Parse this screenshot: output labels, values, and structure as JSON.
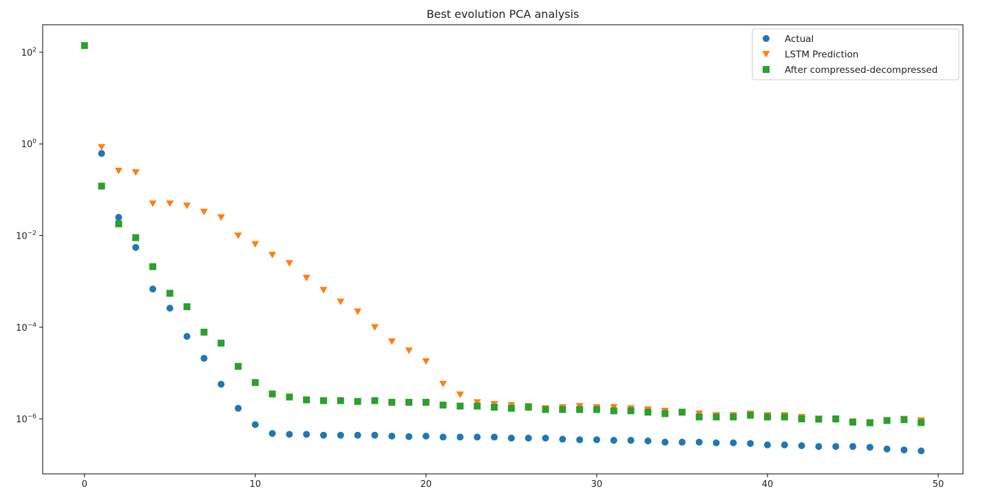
{
  "chart_data": {
    "type": "scatter",
    "title": "Best evolution PCA analysis",
    "xlabel": "",
    "ylabel": "",
    "y_scale": "log",
    "xlim": [
      -2.45,
      51.45
    ],
    "ylim_exponent": [
      -7.2,
      2.6
    ],
    "x_ticks": [
      0,
      10,
      20,
      30,
      40,
      50
    ],
    "y_ticks_exponent": [
      -6,
      -4,
      -2,
      0,
      2
    ],
    "y_tick_base": "10",
    "grid": false,
    "legend": {
      "position": "top-right",
      "entries": [
        "Actual",
        "LSTM Prediction",
        "After compressed-decompressed"
      ]
    },
    "series": [
      {
        "name": "Actual",
        "marker": "circle",
        "color": "#1f77b4",
        "x": [
          1,
          2,
          3,
          4,
          5,
          6,
          7,
          8,
          9,
          10,
          11,
          12,
          13,
          14,
          15,
          16,
          17,
          18,
          19,
          20,
          21,
          22,
          23,
          24,
          25,
          26,
          27,
          28,
          29,
          30,
          31,
          32,
          33,
          34,
          35,
          36,
          37,
          38,
          39,
          40,
          41,
          42,
          43,
          44,
          45,
          46,
          47,
          48,
          49
        ],
        "y": [
          0.62,
          0.025,
          0.0055,
          0.00068,
          0.00026,
          6.3e-05,
          2.1e-05,
          5.7e-06,
          1.7e-06,
          7.5e-07,
          4.8e-07,
          4.6e-07,
          4.6e-07,
          4.4e-07,
          4.4e-07,
          4.4e-07,
          4.4e-07,
          4.2e-07,
          4.1e-07,
          4.2e-07,
          4e-07,
          4e-07,
          4e-07,
          4e-07,
          3.8e-07,
          3.8e-07,
          3.8e-07,
          3.6e-07,
          3.5e-07,
          3.5e-07,
          3.4e-07,
          3.4e-07,
          3.3e-07,
          3.1e-07,
          3.1e-07,
          3.1e-07,
          3e-07,
          3e-07,
          2.9e-07,
          2.7e-07,
          2.7e-07,
          2.6e-07,
          2.5e-07,
          2.5e-07,
          2.5e-07,
          2.4e-07,
          2.2e-07,
          2.1e-07,
          2e-07
        ]
      },
      {
        "name": "LSTM Prediction",
        "marker": "triangle-down",
        "color": "#ff7f0e",
        "x": [
          1,
          2,
          3,
          4,
          5,
          6,
          7,
          8,
          9,
          10,
          11,
          12,
          13,
          14,
          15,
          16,
          17,
          18,
          19,
          20,
          21,
          22,
          23,
          24,
          25,
          26,
          27,
          28,
          29,
          30,
          31,
          32,
          33,
          34,
          35,
          36,
          37,
          38,
          39,
          40,
          41,
          42,
          43,
          44,
          45,
          46,
          47,
          48,
          49
        ],
        "y": [
          0.85,
          0.26,
          0.24,
          0.05,
          0.05,
          0.045,
          0.033,
          0.025,
          0.01,
          0.0065,
          0.0038,
          0.0025,
          0.0012,
          0.00065,
          0.00036,
          0.00022,
          0.0001,
          4.9e-05,
          3.1e-05,
          1.8e-05,
          5.8e-06,
          3.4e-06,
          2.3e-06,
          2.1e-06,
          2e-06,
          1.9e-06,
          1.7e-06,
          1.8e-06,
          1.9e-06,
          1.8e-06,
          1.8e-06,
          1.7e-06,
          1.6e-06,
          1.5e-06,
          1.4e-06,
          1.3e-06,
          1.2e-06,
          1.2e-06,
          1.3e-06,
          1.2e-06,
          1.2e-06,
          1.1e-06,
          1e-06,
          9.5e-07,
          8.8e-07,
          8.5e-07,
          9.2e-07,
          1e-06,
          9.3e-07
        ]
      },
      {
        "name": "After compressed-decompressed",
        "marker": "square",
        "color": "#2ca02c",
        "x": [
          0,
          1,
          2,
          3,
          4,
          5,
          6,
          7,
          8,
          9,
          10,
          11,
          12,
          13,
          14,
          15,
          16,
          17,
          18,
          19,
          20,
          21,
          22,
          23,
          24,
          25,
          26,
          27,
          28,
          29,
          30,
          31,
          32,
          33,
          34,
          35,
          36,
          37,
          38,
          39,
          40,
          41,
          42,
          43,
          44,
          45,
          46,
          47,
          48,
          49
        ],
        "y": [
          140,
          0.12,
          0.018,
          0.009,
          0.0021,
          0.00055,
          0.00028,
          7.8e-05,
          4.5e-05,
          1.4e-05,
          6.2e-06,
          3.5e-06,
          3e-06,
          2.6e-06,
          2.5e-06,
          2.5e-06,
          2.4e-06,
          2.5e-06,
          2.3e-06,
          2.3e-06,
          2.3e-06,
          2e-06,
          1.9e-06,
          1.9e-06,
          1.8e-06,
          1.7e-06,
          1.8e-06,
          1.6e-06,
          1.6e-06,
          1.6e-06,
          1.6e-06,
          1.5e-06,
          1.5e-06,
          1.4e-06,
          1.3e-06,
          1.4e-06,
          1.1e-06,
          1.1e-06,
          1.1e-06,
          1.2e-06,
          1.1e-06,
          1.1e-06,
          1e-06,
          9.9e-07,
          1e-06,
          8.5e-07,
          8.2e-07,
          9.2e-07,
          9.6e-07,
          8.3e-07
        ]
      }
    ]
  }
}
